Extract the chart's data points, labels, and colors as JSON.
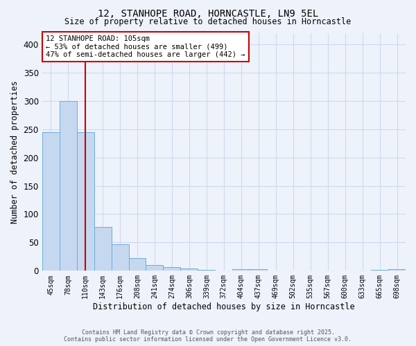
{
  "title_line1": "12, STANHOPE ROAD, HORNCASTLE, LN9 5EL",
  "title_line2": "Size of property relative to detached houses in Horncastle",
  "xlabel": "Distribution of detached houses by size in Horncastle",
  "ylabel": "Number of detached properties",
  "categories": [
    "45sqm",
    "78sqm",
    "110sqm",
    "143sqm",
    "176sqm",
    "208sqm",
    "241sqm",
    "274sqm",
    "306sqm",
    "339sqm",
    "372sqm",
    "404sqm",
    "437sqm",
    "469sqm",
    "502sqm",
    "535sqm",
    "567sqm",
    "600sqm",
    "633sqm",
    "665sqm",
    "698sqm"
  ],
  "values": [
    245,
    300,
    245,
    77,
    47,
    22,
    10,
    7,
    4,
    2,
    0,
    3,
    3,
    0,
    0,
    0,
    0,
    0,
    0,
    2,
    3
  ],
  "bar_color": "#c5d8f0",
  "bar_edge_color": "#6aaed6",
  "background_color": "#eef2fb",
  "grid_color": "#d0d8ee",
  "red_line_index": 2,
  "annotation_text": "12 STANHOPE ROAD: 105sqm\n← 53% of detached houses are smaller (499)\n47% of semi-detached houses are larger (442) →",
  "annotation_box_color": "#ffffff",
  "annotation_border_color": "#cc0000",
  "footer_line1": "Contains HM Land Registry data © Crown copyright and database right 2025.",
  "footer_line2": "Contains public sector information licensed under the Open Government Licence v3.0.",
  "ylim": [
    0,
    420
  ],
  "yticks": [
    0,
    50,
    100,
    150,
    200,
    250,
    300,
    350,
    400
  ]
}
